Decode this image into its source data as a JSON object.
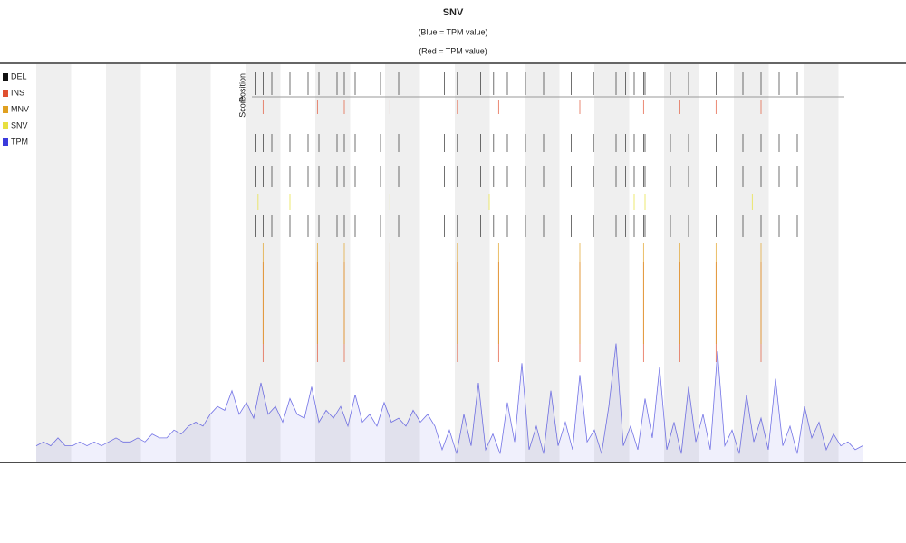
{
  "chart_data": {
    "type": "line",
    "title": "SNV",
    "subtitles": [
      "(Blue = TPM value)",
      "(Red = TPM value)"
    ],
    "xlim": [
      0,
      115
    ],
    "ylim": [
      0,
      100
    ],
    "series": [
      {
        "name": "TPM",
        "color": "#3b3bdc",
        "x": [
          0,
          1,
          2,
          3,
          4,
          5,
          6,
          7,
          8,
          9,
          10,
          11,
          12,
          13,
          14,
          15,
          16,
          17,
          18,
          19,
          20,
          21,
          22,
          23,
          24,
          25,
          26,
          27,
          28,
          29,
          30,
          31,
          32,
          33,
          34,
          35,
          36,
          37,
          38,
          39,
          40,
          41,
          42,
          43,
          44,
          45,
          46,
          47,
          48,
          49,
          50,
          51,
          52,
          53,
          54,
          55,
          56,
          57,
          58,
          59,
          60,
          61,
          62,
          63,
          64,
          65,
          66,
          67,
          68,
          69,
          70,
          71,
          72,
          73,
          74,
          75,
          76,
          77,
          78,
          79,
          80,
          81,
          82,
          83,
          84,
          85,
          86,
          87,
          88,
          89,
          90,
          91,
          92,
          93,
          94,
          95,
          96,
          97,
          98,
          99,
          100,
          101,
          102,
          103,
          104,
          105,
          106,
          107,
          108,
          109,
          110,
          111,
          112,
          113,
          114
        ],
        "values": [
          4,
          5,
          4,
          6,
          4,
          4,
          5,
          4,
          5,
          4,
          5,
          6,
          5,
          5,
          6,
          5,
          7,
          6,
          6,
          8,
          7,
          9,
          10,
          9,
          12,
          14,
          13,
          18,
          12,
          15,
          11,
          20,
          12,
          14,
          10,
          16,
          12,
          11,
          19,
          10,
          13,
          11,
          14,
          9,
          17,
          10,
          12,
          9,
          15,
          10,
          11,
          9,
          13,
          10,
          12,
          9,
          3,
          8,
          2,
          12,
          4,
          20,
          3,
          7,
          2,
          15,
          5,
          25,
          3,
          9,
          2,
          18,
          4,
          10,
          3,
          22,
          5,
          8,
          2,
          14,
          30,
          4,
          9,
          3,
          16,
          6,
          24,
          3,
          10,
          2,
          19,
          5,
          12,
          3,
          28,
          4,
          8,
          2,
          17,
          5,
          11,
          3,
          21,
          4,
          9,
          2,
          14,
          6,
          10,
          3,
          7,
          4,
          5,
          3,
          4
        ]
      }
    ],
    "event_series": [
      {
        "name": "DEL",
        "color": "#111111",
        "x": [
          30.3,
          31.3,
          32.5,
          35,
          37.5,
          39,
          41.5,
          42.5,
          44,
          47.5,
          48.8,
          50,
          56.3,
          58.1,
          61.3,
          63.1,
          65,
          67.5,
          70,
          73.8,
          76.9,
          80,
          81.3,
          82.5,
          83.8,
          84,
          87.5,
          90,
          93.8,
          97.5,
          100,
          102.5,
          105,
          111.3
        ]
      },
      {
        "name": "INS",
        "color": "#e05030",
        "x": [
          31.3,
          38.8,
          42.5,
          48.8,
          58.1,
          63.8,
          75,
          83.8,
          88.8,
          93.8,
          100
        ]
      },
      {
        "name": "MNV",
        "color": "#e0a020",
        "x": [
          31.3,
          38.8,
          42.5,
          48.8,
          58.1,
          63.8,
          75,
          83.8,
          88.8,
          93.8,
          100
        ]
      },
      {
        "name": "SNV",
        "color": "#e8e040",
        "x": [
          30.6,
          35,
          48.8,
          62.5,
          82.5,
          84,
          98.8
        ]
      }
    ],
    "track_labels": [
      "Position",
      "Score"
    ]
  }
}
